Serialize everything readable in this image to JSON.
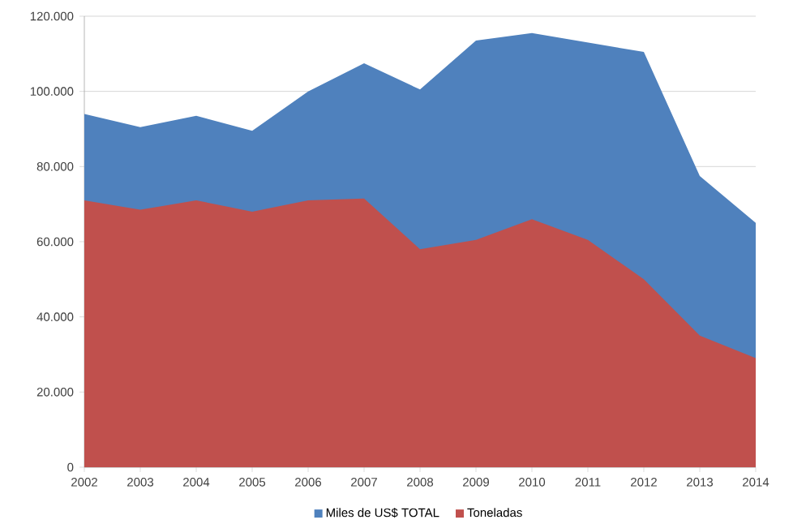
{
  "chart_data": {
    "type": "area",
    "categories": [
      "2002",
      "2003",
      "2004",
      "2005",
      "2006",
      "2007",
      "2008",
      "2009",
      "2010",
      "2011",
      "2012",
      "2013",
      "2014"
    ],
    "series": [
      {
        "name": "Miles de US$ TOTAL",
        "color": "#4f81bd",
        "values": [
          94000,
          90500,
          93500,
          89500,
          100000,
          107500,
          100500,
          113500,
          115500,
          113000,
          110500,
          77500,
          65000
        ]
      },
      {
        "name": "Toneladas",
        "color": "#c0504d",
        "values": [
          71000,
          68500,
          71000,
          68000,
          71000,
          71500,
          58000,
          60500,
          66000,
          60500,
          50000,
          35000,
          29000
        ]
      }
    ],
    "ylim": [
      0,
      120000
    ],
    "yticks": [
      0,
      {
        "value": 20000,
        "label": "20.000"
      },
      {
        "value": 40000,
        "label": "40.000"
      },
      {
        "value": 60000,
        "label": "60.000"
      },
      {
        "value": 80000,
        "label": "80.000"
      },
      {
        "value": 100000,
        "label": "100.000"
      },
      {
        "value": 120000,
        "label": "120.000"
      }
    ],
    "grid": "y",
    "legend": "bottom"
  }
}
